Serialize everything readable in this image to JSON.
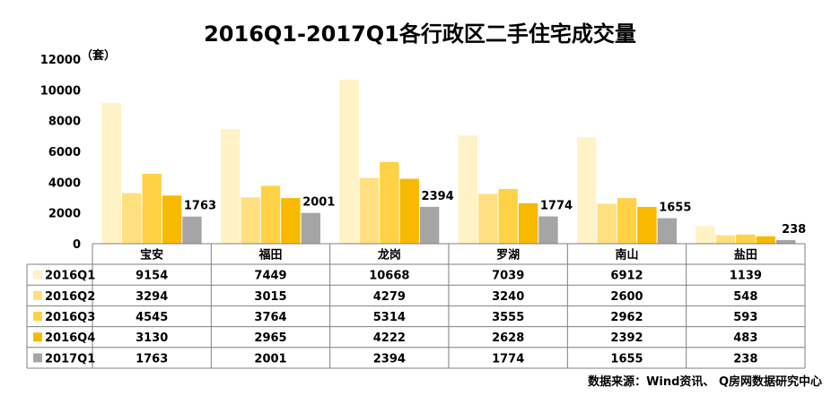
{
  "chart_data": {
    "type": "bar",
    "title": "2016Q1-2017Q1各行政区二手住宅成交量",
    "unit_label": "（套）",
    "categories": [
      "宝安",
      "福田",
      "龙岗",
      "罗湖",
      "南山",
      "盐田"
    ],
    "ylim": [
      0,
      12000
    ],
    "yticks": [
      0,
      2000,
      4000,
      6000,
      8000,
      10000,
      12000
    ],
    "grid": false,
    "legend_placement": "table-left",
    "series": [
      {
        "name": "2016Q1",
        "color": "#FFF2C6",
        "values": [
          9154,
          7449,
          10668,
          7039,
          6912,
          1139
        ]
      },
      {
        "name": "2016Q2",
        "color": "#FFDF7F",
        "values": [
          3294,
          3015,
          4279,
          3240,
          2600,
          548
        ]
      },
      {
        "name": "2016Q3",
        "color": "#FFD145",
        "values": [
          4545,
          3764,
          5314,
          3555,
          2962,
          593
        ]
      },
      {
        "name": "2016Q4",
        "color": "#F7BA00",
        "values": [
          3130,
          2965,
          4222,
          2628,
          2392,
          483
        ]
      },
      {
        "name": "2017Q1",
        "color": "#A5A5A5",
        "values": [
          1763,
          2001,
          2394,
          1774,
          1655,
          238
        ]
      }
    ],
    "labeled_series_index": 4,
    "source": "数据来源：Wind资讯、 Q房网数据研究中心"
  }
}
